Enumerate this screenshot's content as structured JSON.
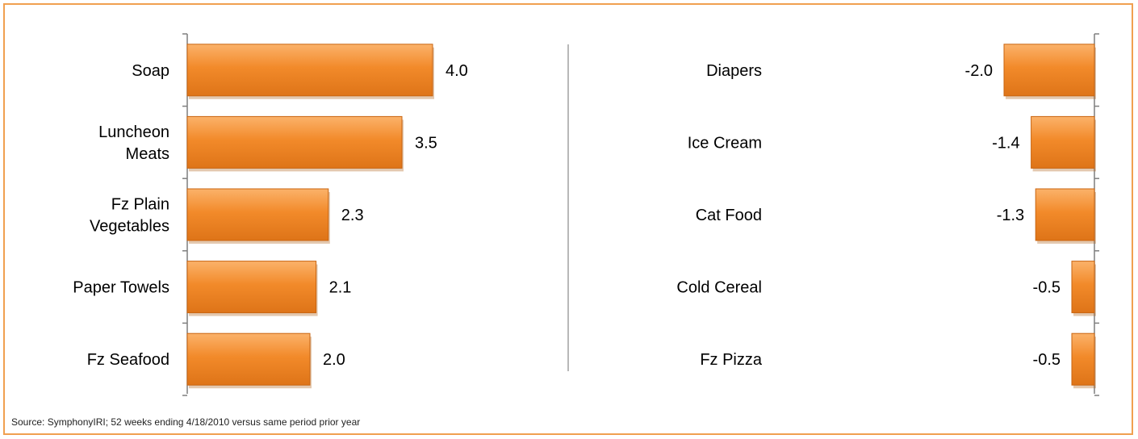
{
  "chart_data": [
    {
      "type": "bar",
      "orientation": "horizontal",
      "categories": [
        [
          "Soap"
        ],
        [
          "Luncheon",
          "Meats"
        ],
        [
          "Fz Plain",
          "Vegetables"
        ],
        [
          "Paper Towels"
        ],
        [
          "Fz Seafood"
        ]
      ],
      "values": [
        4.0,
        3.5,
        2.3,
        2.1,
        2.0
      ],
      "value_labels": [
        "4.0",
        "3.5",
        "2.3",
        "2.1",
        "2.0"
      ],
      "xlim": [
        0,
        4.0
      ]
    },
    {
      "type": "bar",
      "orientation": "horizontal",
      "categories": [
        [
          "Diapers"
        ],
        [
          "Ice Cream"
        ],
        [
          "Cat Food"
        ],
        [
          "Cold Cereal"
        ],
        [
          "Fz Pizza"
        ]
      ],
      "values": [
        -2.0,
        -1.4,
        -1.3,
        -0.5,
        -0.5
      ],
      "value_labels": [
        "-2.0",
        "-1.4",
        "-1.3",
        "-0.5",
        "-0.5"
      ],
      "xlim": [
        -2.0,
        0
      ]
    }
  ],
  "colors": {
    "bar": "#f28a2a",
    "bar_light": "#fbb26a",
    "bar_dark": "#d96a10",
    "frame": "#f0a050"
  },
  "source": "Source:  SymphonyIRI; 52 weeks ending 4/18/2010 versus same period prior year"
}
